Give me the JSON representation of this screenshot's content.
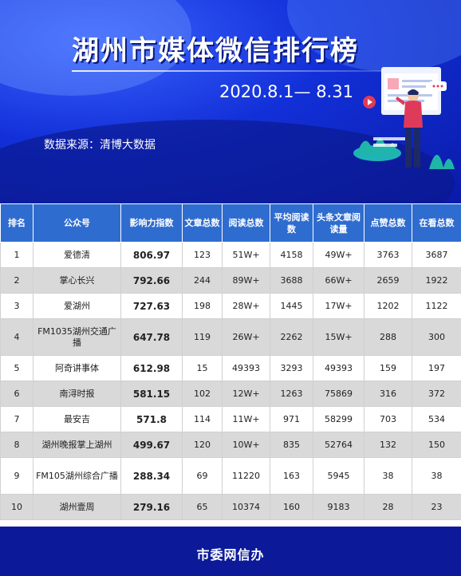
{
  "header": {
    "title": "湖州市媒体微信排行榜",
    "date_range": "2020.8.1— 8.31",
    "source": "数据来源：清博大数据"
  },
  "table": {
    "columns": [
      "排名",
      "公众号",
      "影响力指数",
      "文章总数",
      "阅读总数",
      "平均阅读数",
      "头条文章阅读量",
      "点赞总数",
      "在看总数"
    ],
    "rows": [
      {
        "rank": "1",
        "name": "爱德清",
        "index": "806.97",
        "articles": "123",
        "reads": "51W+",
        "avg_reads": "4158",
        "headline_reads": "49W+",
        "likes": "3763",
        "looking": "3687"
      },
      {
        "rank": "2",
        "name": "掌心长兴",
        "index": "792.66",
        "articles": "244",
        "reads": "89W+",
        "avg_reads": "3688",
        "headline_reads": "66W+",
        "likes": "2659",
        "looking": "1922"
      },
      {
        "rank": "3",
        "name": "爱湖州",
        "index": "727.63",
        "articles": "198",
        "reads": "28W+",
        "avg_reads": "1445",
        "headline_reads": "17W+",
        "likes": "1202",
        "looking": "1122"
      },
      {
        "rank": "4",
        "name": "FM1035湖州交通广播",
        "index": "647.78",
        "articles": "119",
        "reads": "26W+",
        "avg_reads": "2262",
        "headline_reads": "15W+",
        "likes": "288",
        "looking": "300"
      },
      {
        "rank": "5",
        "name": "阿奇讲事体",
        "index": "612.98",
        "articles": "15",
        "reads": "49393",
        "avg_reads": "3293",
        "headline_reads": "49393",
        "likes": "159",
        "looking": "197"
      },
      {
        "rank": "6",
        "name": "南浔时报",
        "index": "581.15",
        "articles": "102",
        "reads": "12W+",
        "avg_reads": "1263",
        "headline_reads": "75869",
        "likes": "316",
        "looking": "372"
      },
      {
        "rank": "7",
        "name": "最安吉",
        "index": "571.8",
        "articles": "114",
        "reads": "11W+",
        "avg_reads": "971",
        "headline_reads": "58299",
        "likes": "703",
        "looking": "534"
      },
      {
        "rank": "8",
        "name": "湖州晚报掌上湖州",
        "index": "499.67",
        "articles": "120",
        "reads": "10W+",
        "avg_reads": "835",
        "headline_reads": "52764",
        "likes": "132",
        "looking": "150"
      },
      {
        "rank": "9",
        "name": "FM105湖州综合广播",
        "index": "288.34",
        "articles": "69",
        "reads": "11220",
        "avg_reads": "163",
        "headline_reads": "5945",
        "likes": "38",
        "looking": "38"
      },
      {
        "rank": "10",
        "name": "湖州壹周",
        "index": "279.16",
        "articles": "65",
        "reads": "10374",
        "avg_reads": "160",
        "headline_reads": "9183",
        "likes": "28",
        "looking": "23"
      }
    ]
  },
  "footer": {
    "text": "市委网信办"
  },
  "colors": {
    "header_bg": "#1230d8",
    "table_header_bg": "#2f6ccf",
    "alt_row_bg": "#d9d9d9",
    "footer_bg": "#0c1a9a"
  }
}
